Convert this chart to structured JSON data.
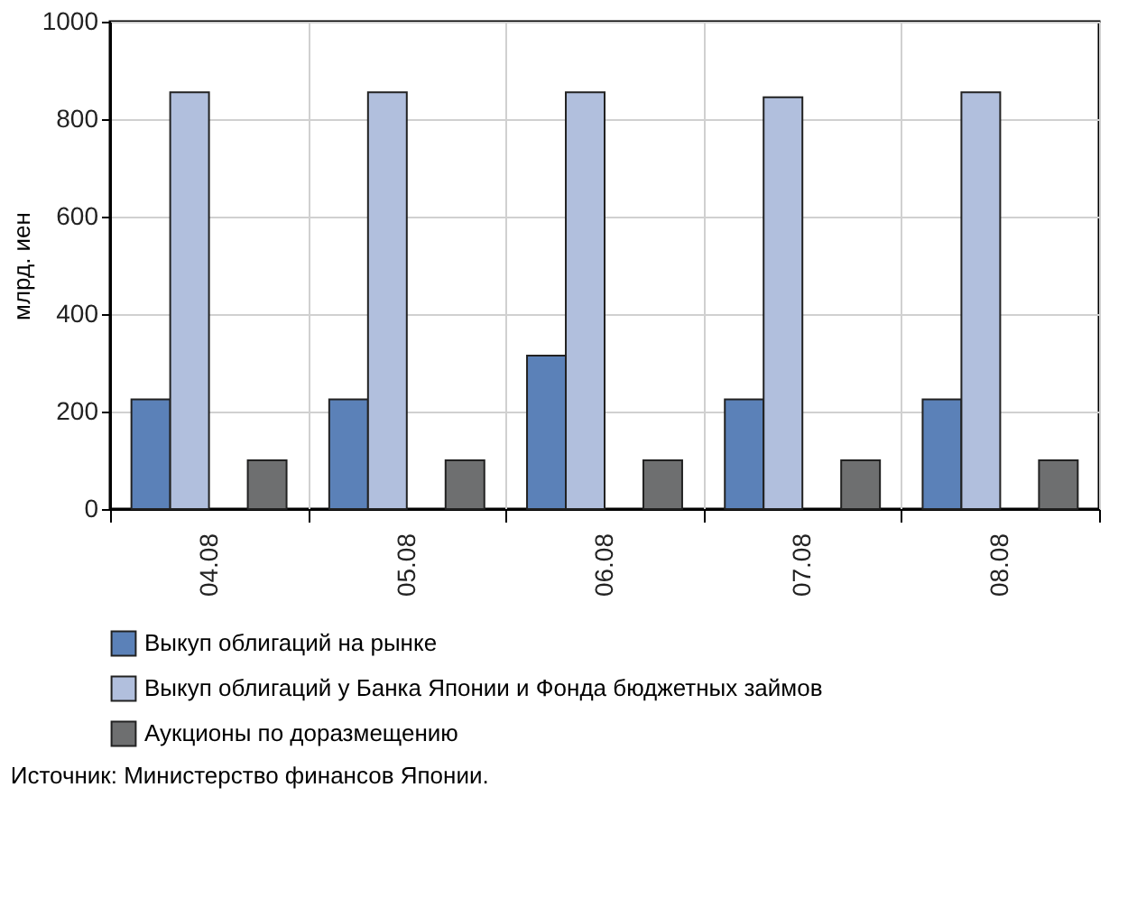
{
  "chart_data": {
    "type": "bar",
    "ylabel": "млрд. иен",
    "categories": [
      "04.08",
      "05.08",
      "06.08",
      "07.08",
      "08.08"
    ],
    "series": [
      {
        "name": "Выкуп облигаций на рынке",
        "color": "#5b81b8",
        "values": [
          225,
          225,
          315,
          225,
          225
        ]
      },
      {
        "name": "Выкуп облигаций у Банка Японии и Фонда бюджетных займов",
        "color": "#b1bfdd",
        "values": [
          855,
          855,
          855,
          845,
          855
        ]
      },
      {
        "name": "Аукционы по доразмещению",
        "color": "#6e6f70",
        "values": [
          100,
          100,
          100,
          100,
          100
        ]
      }
    ],
    "ylim": [
      0,
      1000
    ],
    "yticks": [
      0,
      200,
      400,
      600,
      800,
      1000
    ],
    "grid": true,
    "legend": "bottom",
    "annotations": [
      "Источник: Министерство финансов Японии."
    ]
  }
}
